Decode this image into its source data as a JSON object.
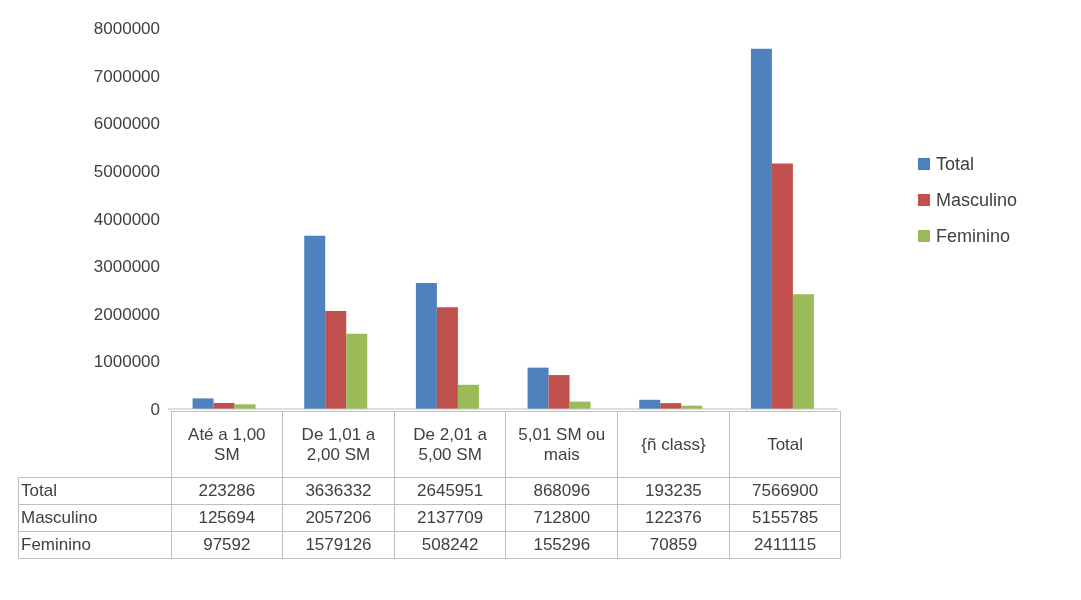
{
  "chart_data": {
    "type": "bar",
    "categories": [
      "Até a 1,00 SM",
      "De 1,01 a 2,00 SM",
      "De 2,01 a 5,00 SM",
      "5,01 SM ou mais",
      "{ñ class}",
      "Total"
    ],
    "series": [
      {
        "name": "Total",
        "color": "#4f81bd",
        "values": [
          223286,
          3636332,
          2645951,
          868096,
          193235,
          7566900
        ]
      },
      {
        "name": "Masculino",
        "color": "#c0504d",
        "values": [
          125694,
          2057206,
          2137709,
          712800,
          122376,
          5155785
        ]
      },
      {
        "name": "Feminino",
        "color": "#9bbb59",
        "values": [
          97592,
          1579126,
          508242,
          155296,
          70859,
          2411115
        ]
      }
    ],
    "ylim": [
      0,
      8000000
    ],
    "yticks": [
      0,
      1000000,
      2000000,
      3000000,
      4000000,
      5000000,
      6000000,
      7000000,
      8000000
    ],
    "grid": false,
    "legend": "right",
    "data_labels": true
  }
}
